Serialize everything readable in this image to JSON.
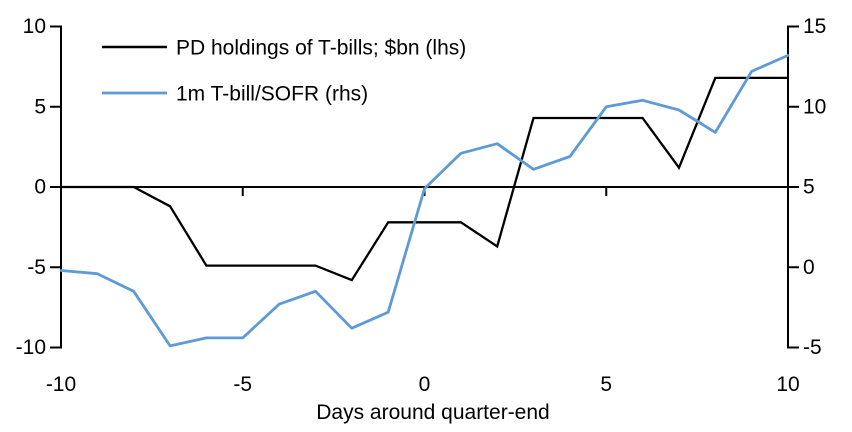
{
  "chart_data": {
    "type": "line",
    "title": "",
    "xlabel": "Days around quarter-end",
    "x": [
      -10,
      -9,
      -8,
      -7,
      -6,
      -5,
      -4,
      -3,
      -2,
      -1,
      0,
      1,
      2,
      3,
      4,
      5,
      6,
      7,
      8,
      9,
      10
    ],
    "series": [
      {
        "name": "PD holdings of T-bills; $bn (lhs)",
        "axis": "left",
        "color": "#000000",
        "values": [
          0,
          0,
          0,
          -1.2,
          -4.9,
          -4.9,
          -4.9,
          -4.9,
          -5.8,
          -2.2,
          -2.2,
          -2.2,
          -3.7,
          4.3,
          4.3,
          4.3,
          4.3,
          1.2,
          6.8,
          6.8,
          6.8
        ]
      },
      {
        "name": "1m T-bill/SOFR (rhs)",
        "axis": "right",
        "color": "#5E9BD6",
        "values": [
          -0.2,
          -0.4,
          -1.5,
          -4.9,
          -4.4,
          -4.4,
          -2.3,
          -1.5,
          -3.8,
          -2.8,
          4.9,
          7.1,
          7.7,
          6.1,
          6.9,
          10.0,
          10.4,
          9.8,
          8.4,
          12.2,
          13.2
        ]
      }
    ],
    "left_axis": {
      "min": -10,
      "max": 10,
      "ticks": [
        10,
        5,
        0,
        -5,
        -10
      ]
    },
    "right_axis": {
      "min": -5,
      "max": 15,
      "ticks": [
        15,
        10,
        5,
        0,
        -5
      ]
    },
    "x_axis": {
      "ticks": [
        -10,
        -5,
        0,
        5,
        10
      ],
      "zero_line_at_left_value": 0
    },
    "legend_position": "top-left",
    "grid": false,
    "background_color": "#ffffff"
  }
}
